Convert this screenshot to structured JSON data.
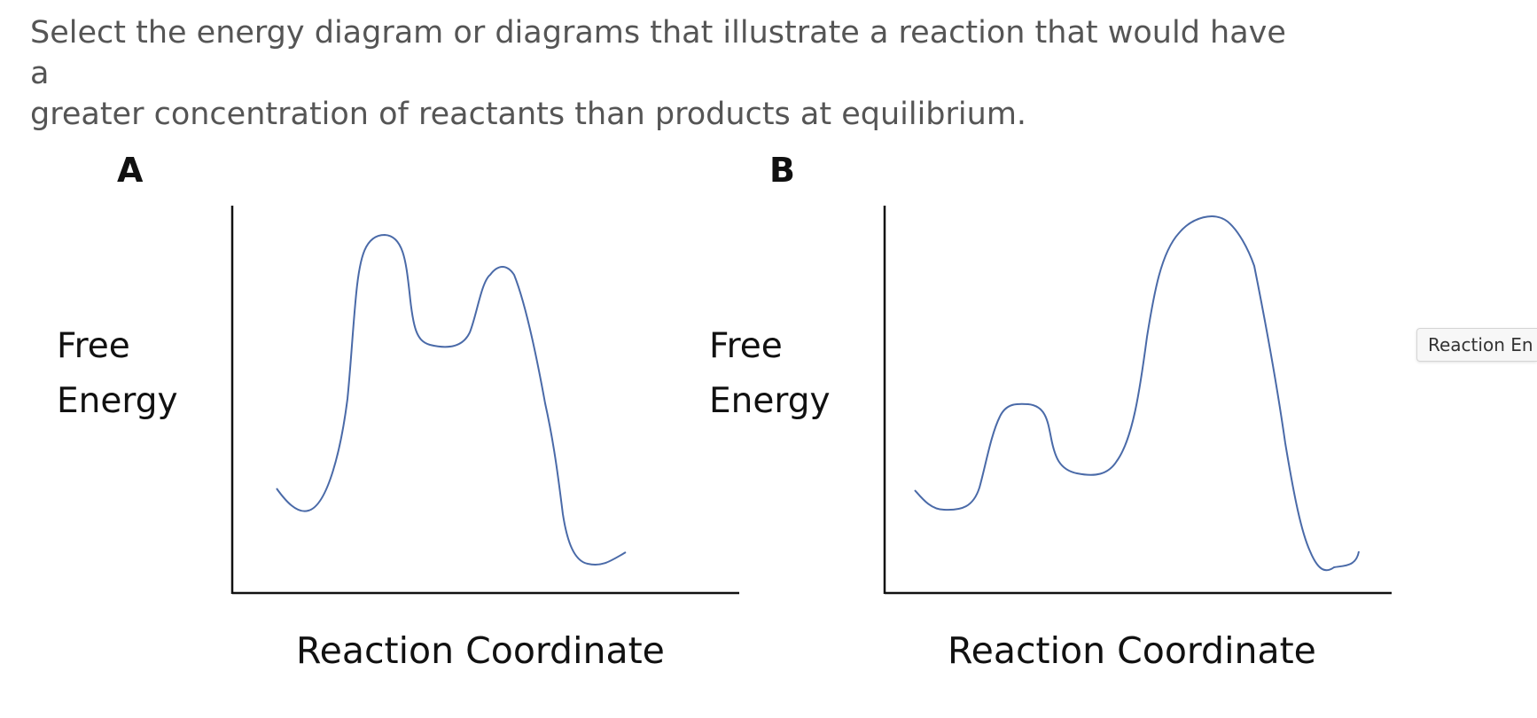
{
  "question": {
    "text_line1": "Select the energy diagram or diagrams that illustrate a reaction that would have a",
    "text_line2": "greater concentration of reactants than products at equilibrium."
  },
  "diagrams": [
    {
      "letter": "A",
      "y_label_line1": "Free",
      "y_label_line2": "Energy",
      "x_label": "Reaction Coordinate"
    },
    {
      "letter": "B",
      "y_label_line1": "Free",
      "y_label_line2": "Energy",
      "x_label": "Reaction Coordinate"
    }
  ],
  "tooltip": {
    "text": "Reaction En"
  },
  "colors": {
    "curve": "#4a6aa8",
    "axis": "#111111",
    "question_text": "#555555"
  }
}
